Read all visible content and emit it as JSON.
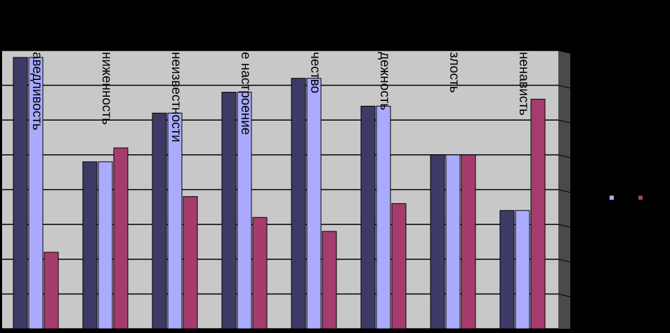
{
  "chart_data": {
    "type": "bar",
    "title": "",
    "xlabel": "",
    "ylabel": "",
    "ylim": [
      0,
      8
    ],
    "grid": true,
    "legend": "right",
    "categories": [
      "справедливость",
      "униженность",
      "неизвестности",
      "плохое настроение",
      "чество",
      "надежность",
      "злость",
      "ненависть"
    ],
    "category_labels": [
      "аведливость",
      "ниженность",
      "неизвестности",
      "е настроение",
      "чество",
      "дежность",
      "злость",
      "ненависть"
    ],
    "series": [
      {
        "color": "#3d3a66",
        "values": [
          7.8,
          4.8,
          6.2,
          6.8,
          7.2,
          6.4,
          5.0,
          3.4
        ]
      },
      {
        "color": "#aaaaff",
        "values": [
          7.8,
          4.8,
          6.2,
          6.8,
          7.2,
          6.4,
          5.0,
          3.4
        ]
      },
      {
        "color": "#a63c6e",
        "values": [
          2.2,
          5.2,
          3.8,
          3.2,
          2.8,
          3.6,
          5.0,
          6.6
        ]
      }
    ]
  }
}
